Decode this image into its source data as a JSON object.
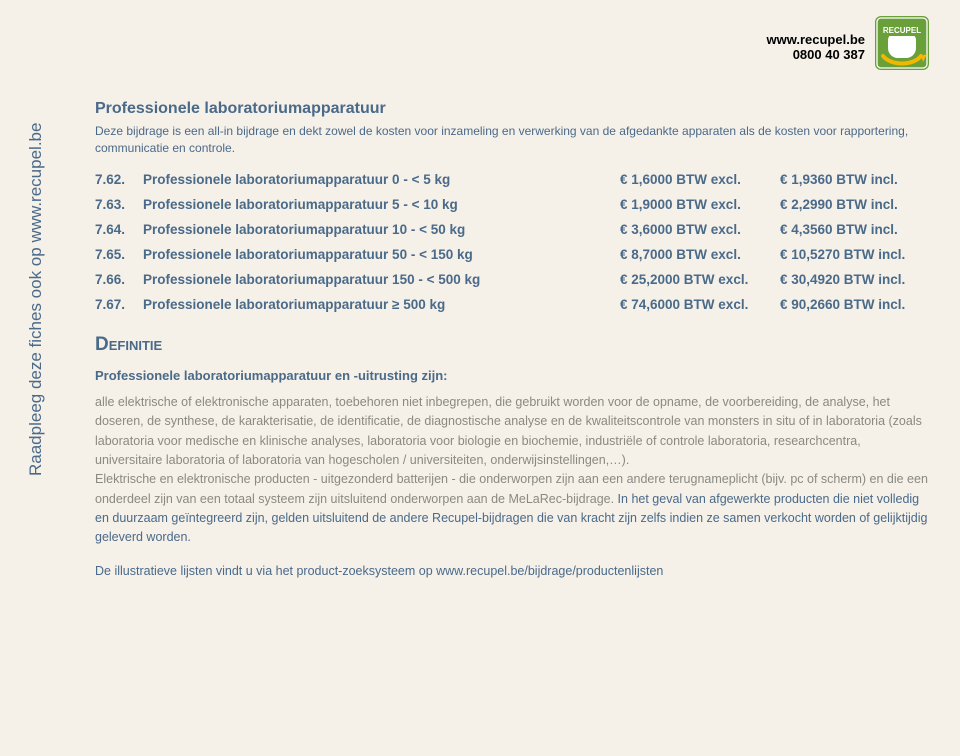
{
  "header": {
    "url": "www.recupel.be",
    "phone": "0800 40 387",
    "logo_label": "RECUPEL",
    "logo_bg": "#6aa03a",
    "logo_arrow": "#f2b800",
    "logo_plug": "#ffffff"
  },
  "sidebar": {
    "text": "Raadpleeg deze fiches ook op www.recupel.be"
  },
  "title": "Professionele laboratoriumapparatuur",
  "intro": "Deze bijdrage is een all-in bijdrage en dekt zowel de kosten voor inzameling en verwerking van de afgedankte apparaten als de kosten voor rapportering, communicatie en controle.",
  "rows": [
    {
      "code": "7.62.",
      "desc": "Professionele laboratoriumapparatuur 0 - < 5 kg",
      "excl": "€ 1,6000 BTW excl.",
      "incl": "€ 1,9360 BTW incl."
    },
    {
      "code": "7.63.",
      "desc": "Professionele laboratoriumapparatuur 5 - < 10 kg",
      "excl": "€ 1,9000 BTW excl.",
      "incl": "€ 2,2990 BTW incl."
    },
    {
      "code": "7.64.",
      "desc": "Professionele laboratoriumapparatuur 10 - < 50 kg",
      "excl": "€ 3,6000 BTW excl.",
      "incl": "€ 4,3560 BTW incl."
    },
    {
      "code": "7.65.",
      "desc": "Professionele laboratoriumapparatuur 50 - < 150 kg",
      "excl": "€ 8,7000 BTW excl.",
      "incl": "€ 10,5270 BTW incl."
    },
    {
      "code": "7.66.",
      "desc": "Professionele laboratoriumapparatuur 150 - < 500 kg",
      "excl": "€ 25,2000 BTW excl.",
      "incl": "€ 30,4920 BTW incl."
    },
    {
      "code": "7.67.",
      "desc": "Professionele laboratoriumapparatuur ≥ 500 kg",
      "excl": "€ 74,6000 BTW excl.",
      "incl": "€ 90,2660 BTW incl."
    }
  ],
  "definition": {
    "heading": "Definitie",
    "subheading": "Professionele laboratoriumapparatuur en -uitrusting zijn:",
    "para_plain_1": "alle elektrische of elektronische apparaten, toebehoren niet inbegrepen, die gebruikt worden voor de opname, de voorbereiding, de analyse, het doseren, de synthese, de karakterisatie, de identificatie, de diagnostische analyse en de kwaliteitscontrole van monsters in situ of in laboratoria (zoals laboratoria voor medische en klinische analyses, laboratoria voor biologie en biochemie, industriële of controle laboratoria, researchcentra, universitaire laboratoria of laboratoria van hogescholen / universiteiten, onderwijsinstellingen,…).",
    "para_plain_2": "Elektrische en elektronische producten - uitgezonderd batterijen - die onderworpen zijn aan een andere terugnameplicht (bijv. pc of scherm) en die een onderdeel zijn van een totaal systeem zijn uitsluitend onderworpen aan de MeLaRec-bijdrage. ",
    "para_highlight": "In het geval van afgewerkte producten die niet volledig en duurzaam geïntegreerd zijn, gelden uitsluitend de andere Recupel-bijdragen die van kracht zijn zelfs indien ze samen verkocht worden of gelijktijdig geleverd worden.",
    "footer": "De illustratieve lijsten vindt u via het product-zoeksysteem op www.recupel.be/bijdrage/productenlijsten"
  },
  "colors": {
    "page_bg": "#f5f0e8",
    "accent_blue": "#4a6a8a",
    "accent_green": "#6aa03a",
    "body_gray": "#8a8a82"
  }
}
